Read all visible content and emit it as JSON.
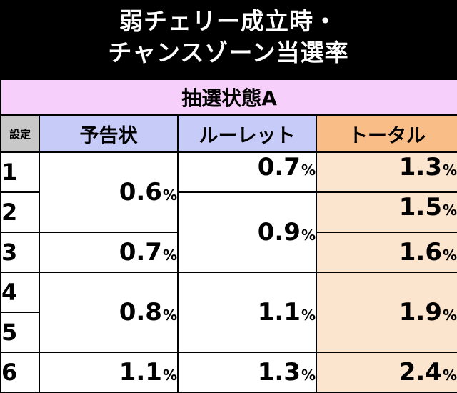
{
  "title": {
    "line1": "弱チェリー成立時・",
    "line2": "チャンスゾーン当選率"
  },
  "mode_label": "抽選状態A",
  "headers": {
    "setting": "設定",
    "yokoku": "予告状",
    "roulette": "ルーレット",
    "total": "トータル"
  },
  "settings": [
    "1",
    "2",
    "3",
    "4",
    "5",
    "6"
  ],
  "yokoku": [
    "0.6",
    "0.7",
    "0.8",
    "1.1"
  ],
  "roulette": [
    "0.7",
    "0.9",
    "1.1",
    "1.3"
  ],
  "total": [
    "1.3",
    "1.5",
    "1.6",
    "1.9",
    "2.4"
  ],
  "unit": "%"
}
